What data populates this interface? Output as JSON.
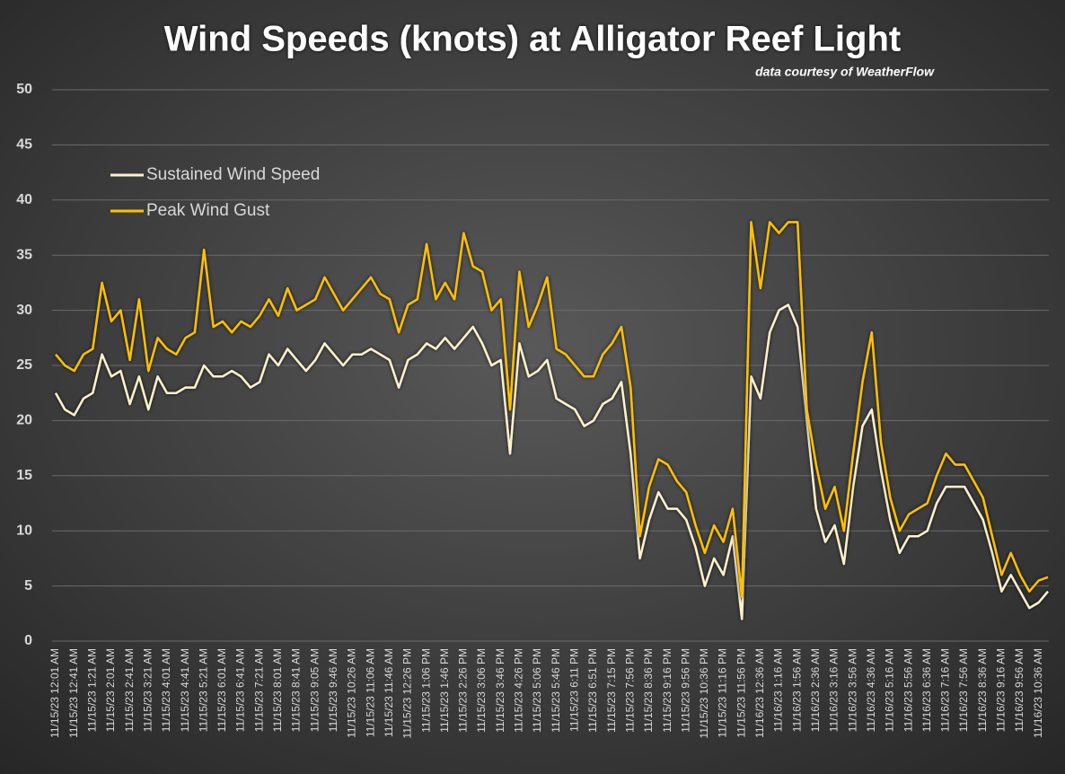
{
  "chart_data": {
    "type": "line",
    "title": "Wind Speeds (knots) at Alligator Reef Light",
    "subtitle": "data courtesy of WeatherFlow",
    "categories": [
      "11/15/23 12:01 AM",
      null,
      "11/15/23 12:41 AM",
      null,
      "11/15/23 1:21 AM",
      null,
      "11/15/23 2:01 AM",
      null,
      "11/15/23 2:41 AM",
      null,
      "11/15/23 3:21 AM",
      null,
      "11/15/23 4:01 AM",
      null,
      "11/15/23 4:41 AM",
      null,
      "11/15/23 5:21 AM",
      null,
      "11/15/23 6:01 AM",
      null,
      "11/15/23 6:41 AM",
      null,
      "11/15/23 7:21 AM",
      null,
      "11/15/23 8:01 AM",
      null,
      "11/15/23 8:41 AM",
      null,
      "11/15/23 9:05 AM",
      null,
      "11/15/23 9:46 AM",
      null,
      "11/15/23 10:26 AM",
      null,
      "11/15/23 11:06 AM",
      null,
      "11/15/23 11:46 AM",
      null,
      "11/15/23 12:26 PM",
      null,
      "11/15/23 1:06 PM",
      null,
      "11/15/23 1:46 PM",
      null,
      "11/15/23 2:26 PM",
      null,
      "11/15/23 3:06 PM",
      null,
      "11/15/23 3:46 PM",
      null,
      "11/15/23 4:26 PM",
      null,
      "11/15/23 5:06 PM",
      null,
      "11/15/23 5:46 PM",
      null,
      "11/15/23 6:11 PM",
      null,
      "11/15/23 6:51 PM",
      null,
      "11/15/23 7:15 PM",
      null,
      "11/15/23 7:56 PM",
      null,
      "11/15/23 8:36 PM",
      null,
      "11/15/23 9:16 PM",
      null,
      "11/15/23 9:56 PM",
      null,
      "11/15/23 10:36 PM",
      null,
      "11/15/23 11:16 PM",
      null,
      "11/15/23 11:56 PM",
      null,
      "11/16/23 12:36 AM",
      null,
      "11/16/23 1:16 AM",
      null,
      "11/16/23 1:56 AM",
      null,
      "11/16/23 2:36 AM",
      null,
      "11/16/23 3:16 AM",
      null,
      "11/16/23 3:56 AM",
      null,
      "11/16/23 4:36 AM",
      null,
      "11/16/23 5:16 AM",
      null,
      "11/16/23 5:56 AM",
      null,
      "11/16/23 6:36 AM",
      null,
      "11/16/23 7:16 AM",
      null,
      "11/16/23 7:56 AM",
      null,
      "11/16/23 8:36 AM",
      null,
      "11/16/23 9:16 AM",
      null,
      "11/16/23 9:56 AM",
      null,
      "11/16/23 10:36 AM",
      null
    ],
    "series": [
      {
        "name": "Sustained Wind Speed",
        "color": "#fff2cc",
        "values": [
          22.5,
          21,
          20.5,
          22,
          22.5,
          26,
          24,
          24.5,
          21.5,
          24,
          21,
          24,
          22.5,
          22.5,
          23,
          23,
          25,
          24,
          24,
          24.5,
          24,
          23,
          23.5,
          26,
          25,
          26.5,
          25.5,
          24.5,
          25.5,
          27,
          26,
          25,
          26,
          26,
          26.5,
          26,
          25.5,
          23,
          25.5,
          26,
          27,
          26.5,
          27.5,
          26.5,
          27.5,
          28.5,
          27,
          25,
          25.5,
          17,
          27,
          24,
          24.5,
          25.5,
          22,
          21.5,
          21,
          19.5,
          20,
          21.5,
          22,
          23.5,
          17,
          7.5,
          11,
          13.5,
          12,
          12,
          11,
          8.5,
          5,
          7.5,
          6,
          9.5,
          2,
          24,
          22,
          28,
          30,
          30.5,
          28.5,
          20,
          12,
          9,
          10.5,
          7,
          14,
          19.5,
          21,
          15.5,
          11,
          8,
          9.5,
          9.5,
          10,
          12.5,
          14,
          14,
          14,
          12.5,
          11,
          8,
          4.5,
          6,
          4.5,
          3,
          3.5,
          4.5
        ]
      },
      {
        "name": "Peak Wind Gust",
        "color": "#ffc000",
        "values": [
          26,
          25,
          24.5,
          26,
          26.5,
          32.5,
          29,
          30,
          25.5,
          31,
          24.5,
          27.5,
          26.5,
          26,
          27.5,
          28,
          35.5,
          28.5,
          29,
          28,
          29,
          28.5,
          29.5,
          31,
          29.5,
          32,
          30,
          30.5,
          31,
          33,
          31.5,
          30,
          31,
          32,
          33,
          31.5,
          31,
          28,
          30.5,
          31,
          36,
          31,
          32.5,
          31,
          37,
          34,
          33.5,
          30,
          31,
          21,
          33.5,
          28.5,
          30.5,
          33,
          26.5,
          26,
          25,
          24,
          24,
          26,
          27,
          28.5,
          23,
          9.5,
          14,
          16.5,
          16,
          14.5,
          13.5,
          10.5,
          8,
          10.5,
          9,
          12,
          4,
          38,
          32,
          38,
          37,
          38,
          38,
          21,
          16,
          12,
          14,
          10,
          17,
          23.5,
          28,
          18,
          13,
          10,
          11.5,
          12,
          12.5,
          15,
          17,
          16,
          16,
          14.5,
          13,
          9.5,
          6,
          8,
          6,
          4.5,
          5.5,
          5.8
        ]
      }
    ],
    "ylim": [
      0,
      50
    ],
    "yticks": [
      0,
      5,
      10,
      15,
      20,
      25,
      30,
      35,
      40,
      45,
      50
    ],
    "grid": true,
    "legend": "upper left"
  }
}
